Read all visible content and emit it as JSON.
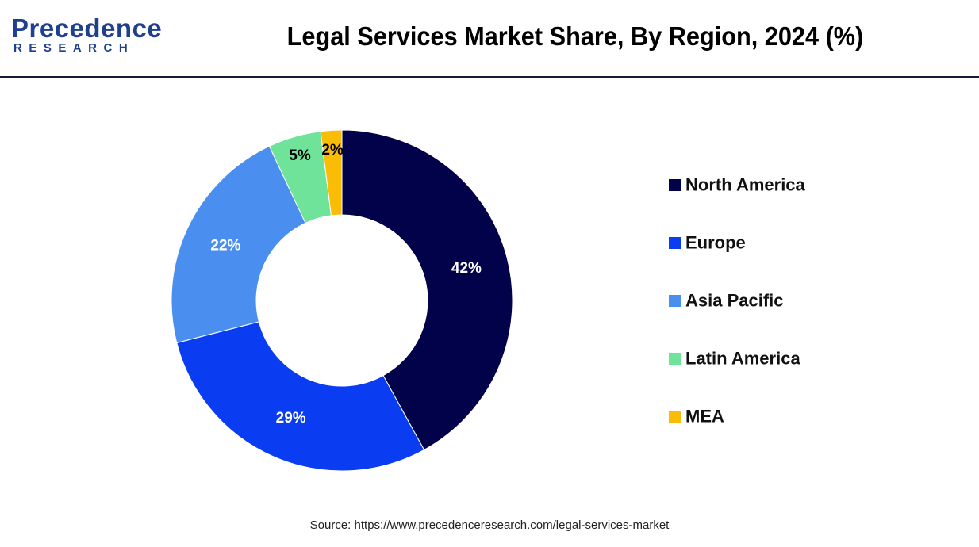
{
  "header": {
    "logo_main": "Precedence",
    "logo_sub": "RESEARCH",
    "title": "Legal Services Market Share, By Region, 2024 (%)"
  },
  "chart_data": {
    "type": "pie",
    "variant": "donut",
    "title": "Legal Services Market Share, By Region, 2024 (%)",
    "categories": [
      "North America",
      "Europe",
      "Asia Pacific",
      "Latin America",
      "MEA"
    ],
    "values": [
      42,
      29,
      22,
      5,
      2
    ],
    "labels": [
      "42%",
      "29%",
      "22%",
      "5%",
      "2%"
    ],
    "colors": [
      "#02024a",
      "#0a3cf2",
      "#4a8ff0",
      "#6fe39a",
      "#fbbc05"
    ],
    "label_colors": [
      "#ffffff",
      "#ffffff",
      "#ffffff",
      "#000000",
      "#000000"
    ],
    "legend_placement": "right"
  },
  "footer": {
    "source": "Source: https://www.precedenceresearch.com/legal-services-market"
  }
}
